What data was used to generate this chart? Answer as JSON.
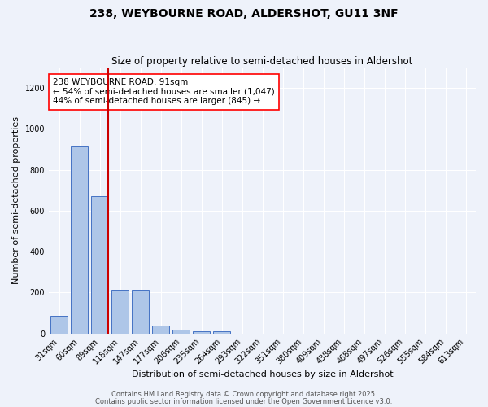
{
  "title": "238, WEYBOURNE ROAD, ALDERSHOT, GU11 3NF",
  "subtitle": "Size of property relative to semi-detached houses in Aldershot",
  "xlabel": "Distribution of semi-detached houses by size in Aldershot",
  "ylabel": "Number of semi-detached properties",
  "categories": [
    "31sqm",
    "60sqm",
    "89sqm",
    "118sqm",
    "147sqm",
    "177sqm",
    "206sqm",
    "235sqm",
    "264sqm",
    "293sqm",
    "322sqm",
    "351sqm",
    "380sqm",
    "409sqm",
    "438sqm",
    "468sqm",
    "497sqm",
    "526sqm",
    "555sqm",
    "584sqm",
    "613sqm"
  ],
  "values": [
    85,
    920,
    670,
    215,
    215,
    38,
    20,
    10,
    10,
    0,
    0,
    0,
    0,
    0,
    0,
    0,
    0,
    0,
    0,
    0,
    0
  ],
  "bar_color": "#aec6e8",
  "bar_edge_color": "#4472c4",
  "highlight_bar_index": 2,
  "red_line_color": "#cc0000",
  "annotation_line1": "238 WEYBOURNE ROAD: 91sqm",
  "annotation_line2": "← 54% of semi-detached houses are smaller (1,047)",
  "annotation_line3": "44% of semi-detached houses are larger (845) →",
  "footer_line1": "Contains HM Land Registry data © Crown copyright and database right 2025.",
  "footer_line2": "Contains public sector information licensed under the Open Government Licence v3.0.",
  "ylim": [
    0,
    1300
  ],
  "yticks": [
    0,
    200,
    400,
    600,
    800,
    1000,
    1200
  ],
  "background_color": "#eef2fa",
  "grid_color": "#ffffff",
  "title_fontsize": 10,
  "subtitle_fontsize": 8.5,
  "axis_label_fontsize": 8,
  "tick_fontsize": 7,
  "annotation_fontsize": 7.5,
  "footer_fontsize": 6
}
